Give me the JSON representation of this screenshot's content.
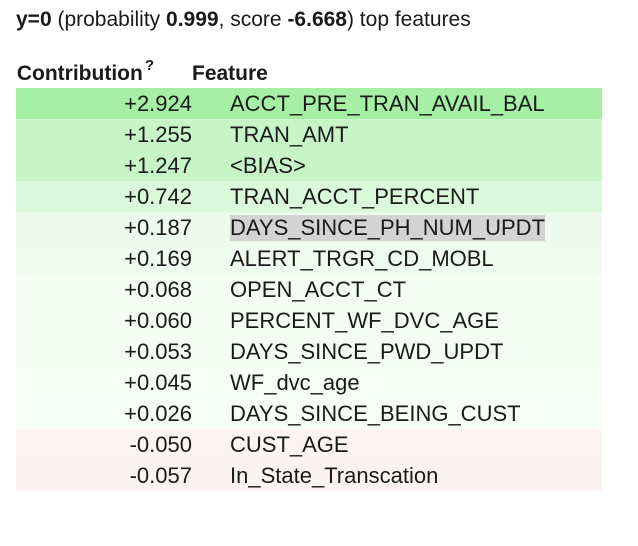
{
  "header": {
    "target_label": "y=0",
    "probability_prefix": " (probability ",
    "probability": "0.999",
    "score_prefix": ", score ",
    "score": "-6.668",
    "suffix": ") top features"
  },
  "table": {
    "col_contribution": "Contribution",
    "col_contribution_sup": "?",
    "col_feature": "Feature",
    "rows": [
      {
        "value": "+2.924",
        "feature": "ACCT_PRE_TRAN_AVAIL_BAL",
        "bg": "#a5f0a5"
      },
      {
        "value": "+1.255",
        "feature": "TRAN_AMT",
        "bg": "#c8f5c8"
      },
      {
        "value": "+1.247",
        "feature": "<BIAS>",
        "bg": "#c8f5c8"
      },
      {
        "value": "+0.742",
        "feature": "TRAN_ACCT_PERCENT",
        "bg": "#daf8da"
      },
      {
        "value": "+0.187",
        "feature": "DAYS_SINCE_PH_NUM_UPDT",
        "bg": "#ecfbec"
      },
      {
        "value": "+0.169",
        "feature": "ALERT_TRGR_CD_MOBL",
        "bg": "#eefcee"
      },
      {
        "value": "+0.068",
        "feature": "OPEN_ACCT_CT",
        "bg": "#f3fdf3"
      },
      {
        "value": "+0.060",
        "feature": "PERCENT_WF_DVC_AGE",
        "bg": "#f4fdf4"
      },
      {
        "value": "+0.053",
        "feature": "DAYS_SINCE_PWD_UPDT",
        "bg": "#f4fdf4"
      },
      {
        "value": "+0.045",
        "feature": "WF_dvc_age",
        "bg": "#f5fdf5"
      },
      {
        "value": "+0.026",
        "feature": "DAYS_SINCE_BEING_CUST",
        "bg": "#f7fdf7"
      },
      {
        "value": "-0.050",
        "feature": "CUST_AGE",
        "bg": "#fdf3f3"
      },
      {
        "value": "-0.057",
        "feature": "In_State_Transcation",
        "bg": "#fdf2f2"
      }
    ]
  }
}
